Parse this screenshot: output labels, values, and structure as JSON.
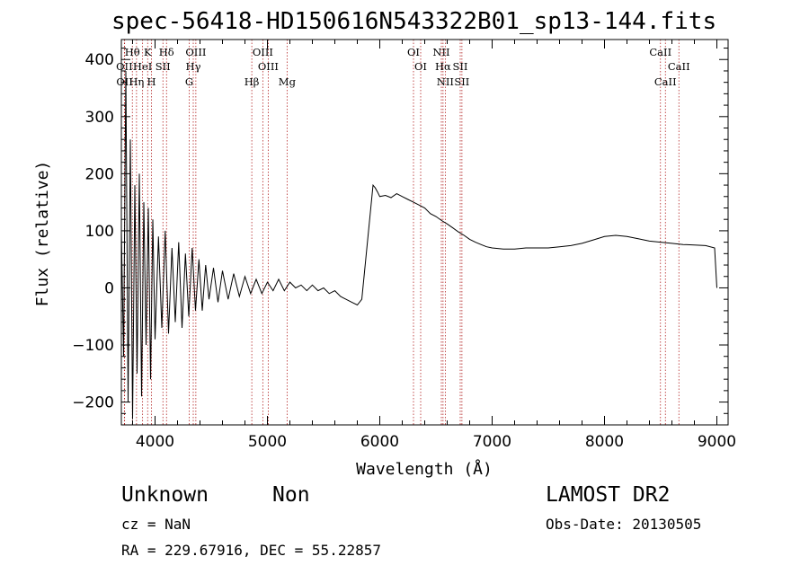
{
  "chart_data": {
    "type": "line",
    "title": "spec-56418-HD150616N543322B01_sp13-144.fits",
    "xlabel": "Wavelength (Å)",
    "ylabel": "Flux (relative)",
    "xlim": [
      3700,
      9100
    ],
    "ylim": [
      -240,
      435
    ],
    "x_ticks": [
      4000,
      5000,
      6000,
      7000,
      8000,
      9000
    ],
    "y_ticks": [
      -200,
      -100,
      0,
      100,
      200,
      300,
      400
    ],
    "x_tick_labels": [
      "4000",
      "5000",
      "6000",
      "7000",
      "8000",
      "9000"
    ],
    "y_tick_labels": [
      "−200",
      "−100",
      "0",
      "100",
      "200",
      "300",
      "400"
    ],
    "series": [
      {
        "color": "#000000",
        "x": [
          3700,
          3720,
          3740,
          3760,
          3780,
          3800,
          3820,
          3840,
          3860,
          3880,
          3900,
          3920,
          3940,
          3960,
          3980,
          4000,
          4030,
          4060,
          4090,
          4120,
          4150,
          4180,
          4210,
          4240,
          4270,
          4300,
          4330,
          4360,
          4390,
          4420,
          4450,
          4480,
          4520,
          4560,
          4600,
          4650,
          4700,
          4750,
          4800,
          4850,
          4900,
          4950,
          5000,
          5050,
          5100,
          5150,
          5200,
          5250,
          5300,
          5350,
          5400,
          5450,
          5500,
          5550,
          5600,
          5650,
          5700,
          5750,
          5800,
          5840,
          5860,
          5880,
          5900,
          5920,
          5940,
          5960,
          5980,
          6000,
          6050,
          6100,
          6150,
          6200,
          6250,
          6300,
          6350,
          6400,
          6450,
          6500,
          6550,
          6600,
          6650,
          6700,
          6750,
          6800,
          6850,
          6900,
          6950,
          7000,
          7100,
          7200,
          7300,
          7400,
          7500,
          7600,
          7700,
          7800,
          7900,
          8000,
          8100,
          8200,
          8300,
          8400,
          8500,
          8600,
          8700,
          8800,
          8900,
          8980,
          9000
        ],
        "y": [
          100,
          -120,
          380,
          -200,
          260,
          -230,
          180,
          -150,
          200,
          -190,
          150,
          -100,
          140,
          -160,
          120,
          -90,
          90,
          -70,
          100,
          -80,
          70,
          -60,
          80,
          -70,
          60,
          -50,
          70,
          -40,
          50,
          -40,
          40,
          -20,
          35,
          -25,
          30,
          -20,
          25,
          -15,
          20,
          -10,
          15,
          -10,
          10,
          -5,
          15,
          -5,
          10,
          0,
          5,
          -5,
          5,
          -5,
          0,
          -10,
          -5,
          -15,
          -20,
          -25,
          -30,
          -20,
          20,
          60,
          100,
          140,
          180,
          175,
          168,
          160,
          162,
          158,
          165,
          160,
          155,
          150,
          145,
          140,
          130,
          125,
          118,
          112,
          105,
          98,
          92,
          85,
          80,
          76,
          72,
          70,
          68,
          68,
          70,
          70,
          70,
          72,
          74,
          78,
          84,
          90,
          92,
          90,
          86,
          82,
          80,
          78,
          76,
          75,
          74,
          70,
          0
        ]
      }
    ],
    "spectral_lines": [
      {
        "label": "Hθ",
        "x": 3798,
        "row": 1
      },
      {
        "label": "K",
        "x": 3934,
        "row": 1
      },
      {
        "label": "Hδ",
        "x": 4102,
        "row": 1
      },
      {
        "label": "OIII",
        "x": 4363,
        "row": 1
      },
      {
        "label": "OIII",
        "x": 4959,
        "row": 1
      },
      {
        "label": "OI",
        "x": 6300,
        "row": 1
      },
      {
        "label": "NII",
        "x": 6548,
        "row": 1
      },
      {
        "label": "CaII",
        "x": 8498,
        "row": 1
      },
      {
        "label": "OII",
        "x": 3727,
        "row": 2
      },
      {
        "label": "HeI",
        "x": 3889,
        "row": 2
      },
      {
        "label": "SII",
        "x": 4070,
        "row": 2
      },
      {
        "label": "Hγ",
        "x": 4340,
        "row": 2
      },
      {
        "label": "OIII",
        "x": 5007,
        "row": 2
      },
      {
        "label": "OI",
        "x": 6364,
        "row": 2
      },
      {
        "label": "Hα",
        "x": 6563,
        "row": 2
      },
      {
        "label": "SII",
        "x": 6716,
        "row": 2
      },
      {
        "label": "CaII",
        "x": 8662,
        "row": 2
      },
      {
        "label": "OII",
        "x": 3729,
        "row": 3
      },
      {
        "label": "Hη",
        "x": 3835,
        "row": 3
      },
      {
        "label": "H",
        "x": 3968,
        "row": 3
      },
      {
        "label": "G",
        "x": 4304,
        "row": 3
      },
      {
        "label": "Hβ",
        "x": 4861,
        "row": 3
      },
      {
        "label": "Mg",
        "x": 5175,
        "row": 3
      },
      {
        "label": "NII",
        "x": 6583,
        "row": 3
      },
      {
        "label": "SII",
        "x": 6731,
        "row": 3
      },
      {
        "label": "CaII",
        "x": 8542,
        "row": 3
      }
    ],
    "grid": false,
    "line_marker_color": "#b22222"
  },
  "footer": {
    "object_class": "Unknown",
    "subclass": "Non",
    "survey": "LAMOST DR2",
    "cz": "cz = NaN",
    "obs_date": "Obs-Date: 20130505",
    "coords": "RA = 229.67916, DEC =  55.22857"
  }
}
